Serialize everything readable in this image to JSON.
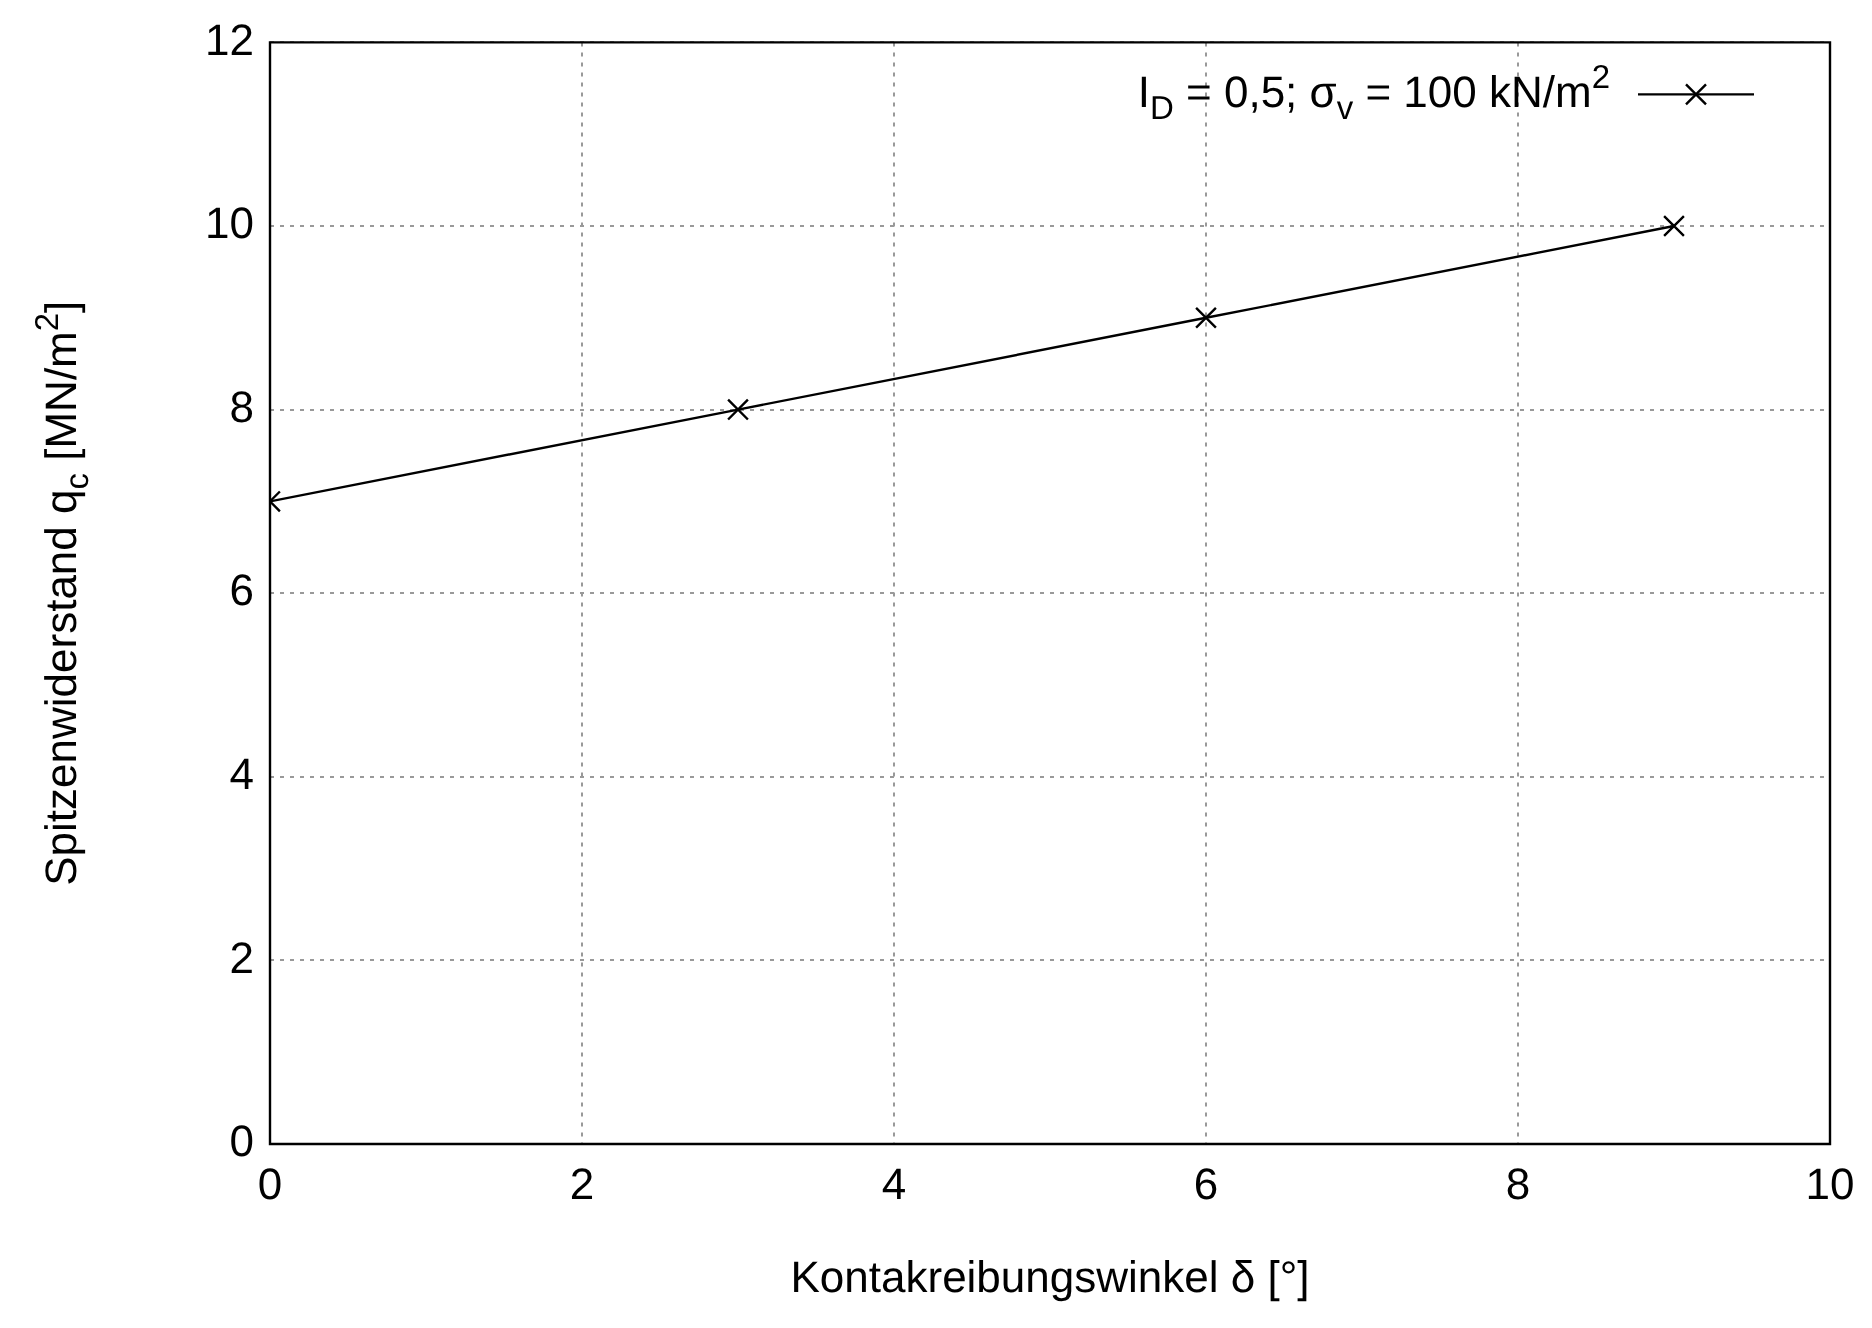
{
  "chart_data": {
    "type": "line",
    "xlabel": "Kontakreibungswinkel δ [°]",
    "ylabel": "Spitzenwiderstand q$_{c}$ [MN/m$^{2}$]",
    "x": [
      0,
      3,
      6,
      9
    ],
    "series": [
      {
        "name": "I$_{D}$ = 0,5; σ$_{v}$ = 100 kN/m$^{2}$",
        "color": "#000000",
        "values": [
          7,
          8,
          9,
          10
        ]
      }
    ],
    "xlim": [
      0,
      10
    ],
    "xticks": [
      0,
      2,
      4,
      6,
      8,
      10
    ],
    "ylim": [
      0,
      12
    ],
    "yticks": [
      0,
      2,
      4,
      6,
      8,
      10,
      12
    ],
    "grid": true,
    "legend": "top right",
    "marker": "cross",
    "line_style": "solid"
  }
}
